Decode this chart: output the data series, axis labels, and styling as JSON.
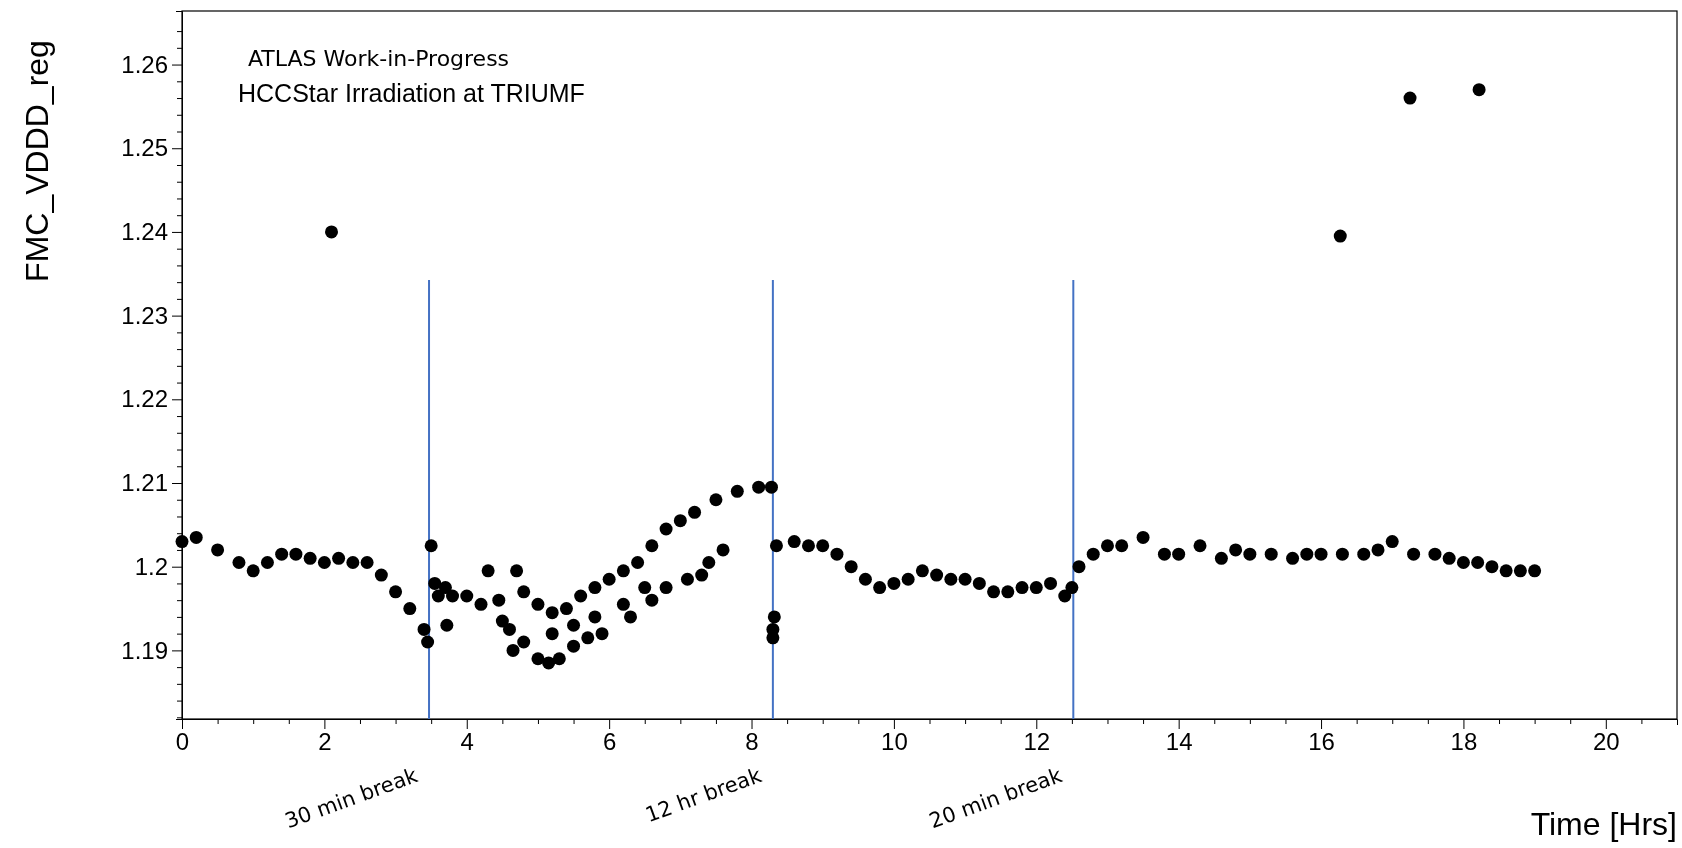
{
  "chart_data": {
    "type": "scatter",
    "xlabel": "Time [Hrs]",
    "ylabel": "FMC_VDDD_reg",
    "annotations": [
      "ATLAS Work-in-Progress",
      "HCCStar Irradiation at TRIUMF"
    ],
    "xlim": [
      0,
      21
    ],
    "ylim": [
      1.1818,
      1.2664
    ],
    "xticks": [
      0,
      {
        "value": 0.5,
        "label": null
      },
      {
        "value": 1,
        "label": null
      },
      {
        "value": 1.5,
        "label": null
      },
      2,
      {
        "value": 2.5,
        "label": null
      },
      {
        "value": 3,
        "label": null
      },
      {
        "value": 3.5,
        "label": null
      },
      4,
      {
        "value": 4.5,
        "label": null
      },
      {
        "value": 5,
        "label": null
      },
      {
        "value": 5.5,
        "label": null
      },
      6,
      {
        "value": 6.5,
        "label": null
      },
      {
        "value": 7,
        "label": null
      },
      {
        "value": 7.5,
        "label": null
      },
      8,
      {
        "value": 8.5,
        "label": null
      },
      {
        "value": 9,
        "label": null
      },
      {
        "value": 9.5,
        "label": null
      },
      10,
      {
        "value": 10.5,
        "label": null
      },
      {
        "value": 11,
        "label": null
      },
      {
        "value": 11.5,
        "label": null
      },
      12,
      {
        "value": 12.5,
        "label": null
      },
      {
        "value": 13,
        "label": null
      },
      {
        "value": 13.5,
        "label": null
      },
      14,
      {
        "value": 14.5,
        "label": null
      },
      {
        "value": 15,
        "label": null
      },
      {
        "value": 15.5,
        "label": null
      },
      16,
      {
        "value": 16.5,
        "label": null
      },
      {
        "value": 17,
        "label": null
      },
      {
        "value": 17.5,
        "label": null
      },
      18,
      {
        "value": 18.5,
        "label": null
      },
      {
        "value": 19,
        "label": null
      },
      {
        "value": 19.5,
        "label": null
      },
      20,
      {
        "value": 20.5,
        "label": null
      }
    ],
    "yticks": [
      {
        "value": 1.182,
        "label": null
      },
      {
        "value": 1.184,
        "label": null
      },
      {
        "value": 1.186,
        "label": null
      },
      {
        "value": 1.188,
        "label": null
      },
      1.19,
      {
        "value": 1.192,
        "label": null
      },
      {
        "value": 1.194,
        "label": null
      },
      {
        "value": 1.196,
        "label": null
      },
      {
        "value": 1.198,
        "label": null
      },
      {
        "value": 1.2,
        "label": "1.2"
      },
      {
        "value": 1.202,
        "label": null
      },
      {
        "value": 1.204,
        "label": null
      },
      {
        "value": 1.206,
        "label": null
      },
      {
        "value": 1.208,
        "label": null
      },
      1.21,
      {
        "value": 1.212,
        "label": null
      },
      {
        "value": 1.214,
        "label": null
      },
      {
        "value": 1.216,
        "label": null
      },
      {
        "value": 1.218,
        "label": null
      },
      1.22,
      {
        "value": 1.222,
        "label": null
      },
      {
        "value": 1.224,
        "label": null
      },
      {
        "value": 1.226,
        "label": null
      },
      {
        "value": 1.228,
        "label": null
      },
      1.23,
      {
        "value": 1.232,
        "label": null
      },
      {
        "value": 1.234,
        "label": null
      },
      {
        "value": 1.236,
        "label": null
      },
      {
        "value": 1.238,
        "label": null
      },
      1.24,
      {
        "value": 1.242,
        "label": null
      },
      {
        "value": 1.244,
        "label": null
      },
      {
        "value": 1.246,
        "label": null
      },
      {
        "value": 1.248,
        "label": null
      },
      1.25,
      {
        "value": 1.252,
        "label": null
      },
      {
        "value": 1.254,
        "label": null
      },
      {
        "value": 1.256,
        "label": null
      },
      {
        "value": 1.258,
        "label": null
      },
      1.26,
      {
        "value": 1.262,
        "label": null
      },
      {
        "value": 1.264,
        "label": null
      }
    ],
    "grid": false,
    "marker": "circle",
    "ref_lines": [
      {
        "axis": "x",
        "value": 3.47,
        "label": "30 min break",
        "color": "#4472c4"
      },
      {
        "axis": "x",
        "value": 8.3,
        "label": "12 hr break",
        "color": "#4472c4"
      },
      {
        "axis": "x",
        "value": 12.52,
        "label": "20 min break",
        "color": "#4472c4"
      }
    ],
    "series": [
      {
        "color": "#000000",
        "x": [
          0,
          0.2,
          0.5,
          0.8,
          1.0,
          1.2,
          1.4,
          1.6,
          1.8,
          2.0,
          2.2,
          2.4,
          2.6,
          2.8,
          3.0,
          3.2,
          3.4,
          3.45,
          2.1,
          3.5,
          3.55,
          3.6,
          3.7,
          3.72,
          3.8,
          4.0,
          4.2,
          4.3,
          4.45,
          4.5,
          4.6,
          4.65,
          4.7,
          4.8,
          5.0,
          5.2,
          5.4,
          5.6,
          5.8,
          6.0,
          6.2,
          6.4,
          6.6,
          6.8,
          7.0,
          7.2,
          7.5,
          7.8,
          8.1,
          8.28,
          4.8,
          5.0,
          5.15,
          5.3,
          5.5,
          5.7,
          5.9,
          6.3,
          6.6,
          6.8,
          7.1,
          7.3,
          7.4,
          7.6,
          5.2,
          5.5,
          5.8,
          6.2,
          6.5,
          8.3,
          8.32,
          8.3,
          8.35,
          8.6,
          8.8,
          9.0,
          9.2,
          9.4,
          9.6,
          9.8,
          10.0,
          10.2,
          10.4,
          10.6,
          10.8,
          11.0,
          11.2,
          11.4,
          11.6,
          11.8,
          12.0,
          12.2,
          12.4,
          12.5,
          12.6,
          12.8,
          13.0,
          13.2,
          13.5,
          13.8,
          14.0,
          14.3,
          14.6,
          14.8,
          15.0,
          15.3,
          15.6,
          15.8,
          16.0,
          16.3,
          16.6,
          16.8,
          17.0,
          17.3,
          17.6,
          17.8,
          18.0,
          18.2,
          18.4,
          18.6,
          18.8,
          19.0,
          16.27,
          17.25,
          18.22
        ],
        "values": [
          1.203,
          1.2035,
          1.202,
          1.2005,
          1.1995,
          1.2005,
          1.2015,
          1.2015,
          1.201,
          1.2005,
          1.201,
          1.2005,
          1.2005,
          1.199,
          1.197,
          1.195,
          1.1925,
          1.191,
          1.24,
          1.2025,
          1.198,
          1.1965,
          1.1975,
          1.193,
          1.1965,
          1.1965,
          1.1955,
          1.1995,
          1.196,
          1.1935,
          1.1925,
          1.19,
          1.1995,
          1.197,
          1.1955,
          1.1945,
          1.195,
          1.1965,
          1.1975,
          1.1985,
          1.1995,
          1.2005,
          1.2025,
          1.2045,
          1.2055,
          1.2065,
          1.208,
          1.209,
          1.2095,
          1.2095,
          1.191,
          1.189,
          1.1885,
          1.189,
          1.1905,
          1.1915,
          1.192,
          1.194,
          1.196,
          1.1975,
          1.1985,
          1.199,
          1.2005,
          1.202,
          1.192,
          1.193,
          1.194,
          1.1955,
          1.1975,
          1.1925,
          1.194,
          1.1915,
          1.2025,
          1.203,
          1.2025,
          1.2025,
          1.2015,
          1.2,
          1.1985,
          1.1975,
          1.198,
          1.1985,
          1.1995,
          1.199,
          1.1985,
          1.1985,
          1.198,
          1.197,
          1.197,
          1.1975,
          1.1975,
          1.198,
          1.1965,
          1.1975,
          1.2,
          1.2015,
          1.2025,
          1.2025,
          1.2035,
          1.2015,
          1.2015,
          1.2025,
          1.201,
          1.202,
          1.2015,
          1.2015,
          1.201,
          1.2015,
          1.2015,
          1.2015,
          1.2015,
          1.202,
          1.203,
          1.2015,
          1.2015,
          1.201,
          1.2005,
          1.2005,
          1.2,
          1.1995,
          1.1995,
          1.1995,
          1.2395,
          1.256,
          1.257
        ]
      }
    ]
  }
}
